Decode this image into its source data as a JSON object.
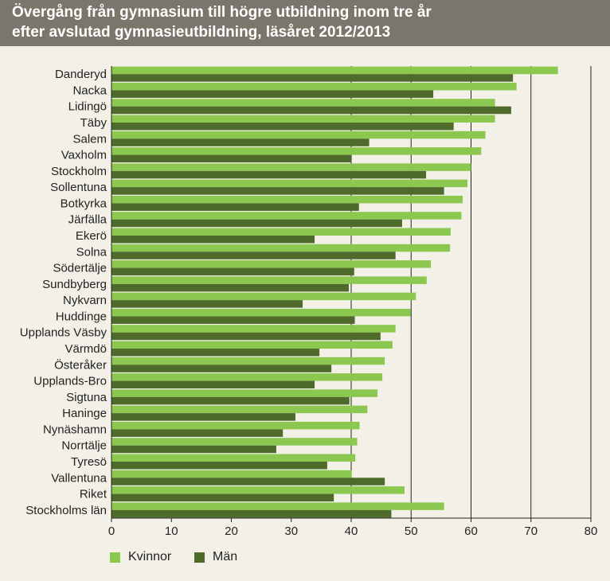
{
  "header": {
    "title_line1": "Övergång från gymnasium till högre utbildning inom tre år",
    "title_line2": "efter avslutad gymnasieutbildning, läsåret 2012/2013"
  },
  "colors": {
    "header_bg": "#7b766b",
    "kvinnor": "#8cc850",
    "man": "#4e6b2b",
    "background": "#f3f1e7"
  },
  "chart_data": {
    "type": "bar",
    "orientation": "horizontal",
    "title": "Övergång från gymnasium till högre utbildning inom tre år efter avslutad gymnasieutbildning, läsåret 2012/2013",
    "xlim": [
      0,
      80
    ],
    "xticks": [
      0,
      10,
      20,
      30,
      40,
      50,
      60,
      70,
      80
    ],
    "grid": "vertical major gridlines at 40, 50, 60, 70, 80",
    "legend_position": "bottom-left",
    "categories": [
      "Danderyd",
      "Nacka",
      "Lidingö",
      "Täby",
      "Salem",
      "Vaxholm",
      "Stockholm",
      "Sollentuna",
      "Botkyrka",
      "Järfälla",
      "Ekerö",
      "Solna",
      "Södertälje",
      "Sundbyberg",
      "Nykvarn",
      "Huddinge",
      "Upplands Väsby",
      "Värmdö",
      "Österåker",
      "Upplands-Bro",
      "Sigtuna",
      "Haninge",
      "Nynäshamn",
      "Norrtälje",
      "Tyresö",
      "Vallentuna",
      "Riket",
      "Stockholms län"
    ],
    "series": [
      {
        "name": "Kvinnor",
        "color": "#8cc850",
        "values": [
          74.5,
          67.6,
          64.0,
          64.0,
          62.4,
          61.7,
          60.0,
          59.4,
          58.6,
          58.4,
          56.6,
          56.5,
          53.3,
          52.6,
          50.8,
          49.9,
          47.4,
          46.9,
          45.6,
          45.2,
          44.4,
          42.7,
          41.4,
          41.0,
          40.7,
          40.1,
          48.9,
          55.5
        ]
      },
      {
        "name": "Män",
        "color": "#4e6b2b",
        "values": [
          67.0,
          53.7,
          66.7,
          57.1,
          43.0,
          40.0,
          52.5,
          55.5,
          41.3,
          48.5,
          33.9,
          47.4,
          40.5,
          39.6,
          31.9,
          40.6,
          44.9,
          34.7,
          36.7,
          33.9,
          39.7,
          30.7,
          28.6,
          27.5,
          36.0,
          45.6,
          37.1,
          46.7
        ]
      }
    ]
  }
}
